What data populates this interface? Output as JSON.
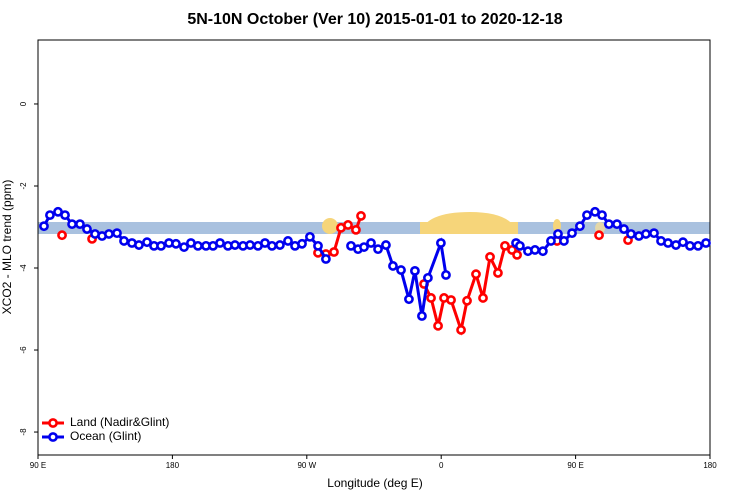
{
  "chart_data": {
    "type": "line",
    "title": "5N-10N October (Ver 10)   2015-01-01 to 2020-12-18",
    "x_label": "Longitude (deg E)",
    "y_label": "XCO2 - MLO trend (ppm)",
    "xlim": [
      90,
      540
    ],
    "ylim": [
      -8.56,
      1.56
    ],
    "xticks": [
      {
        "value": 90,
        "label": "90 E"
      },
      180,
      {
        "value": 270,
        "label": "90 W"
      },
      {
        "value": 360,
        "label": "0"
      },
      {
        "value": 450,
        "label": "90 E"
      },
      {
        "value": 540,
        "label": "180"
      }
    ],
    "yticks": [
      0,
      -2,
      -4,
      -6,
      -8
    ],
    "grid": false,
    "legend": "bottom-left",
    "series": [
      {
        "name": "Land (Nadir&Glint)",
        "color": "#ff0000",
        "x": [
          106.1,
          110,
          126.2,
          200,
          277.5,
          282.8,
          288.2,
          292.9,
          297.6,
          302.9,
          306.3,
          330,
          348.5,
          353.2,
          357.9,
          361.9,
          366.6,
          373.3,
          377.3,
          383.3,
          388.0,
          392.7,
          398.0,
          402.7,
          407.4,
          410.8,
          420,
          437.6,
          450,
          465.7,
          470,
          485.1
        ],
        "values": [
          -3.2,
          null,
          -3.29,
          null,
          -3.63,
          -3.66,
          -3.61,
          -3.02,
          -2.95,
          -3.07,
          -2.73,
          null,
          -4.39,
          -4.73,
          -5.41,
          -4.73,
          -4.78,
          -5.51,
          -4.8,
          -4.15,
          -4.73,
          -3.73,
          -4.12,
          -3.46,
          -3.56,
          -3.68,
          null,
          -3.34,
          null,
          -3.2,
          null,
          -3.32
        ]
      },
      {
        "name": "Ocean (Glint)",
        "color": "#0000ee",
        "x": [
          94.0,
          98.0,
          103.4,
          108.1,
          112.8,
          118.1,
          122.8,
          128.2,
          132.9,
          137.5,
          142.9,
          147.6,
          152.9,
          157.6,
          163.0,
          167.7,
          172.4,
          177.7,
          182.4,
          187.8,
          192.4,
          197.1,
          202.5,
          207.2,
          211.9,
          217.2,
          221.9,
          227.3,
          232.0,
          237.3,
          242.0,
          246.7,
          252.0,
          257.4,
          262.1,
          266.8,
          272.1,
          277.5,
          282.8,
          290,
          299.6,
          304.3,
          308.3,
          313.0,
          317.7,
          323.0,
          327.7,
          333.1,
          338.4,
          342.4,
          347.1,
          351.1,
          359.8,
          363.2,
          385,
          410.1,
          412.7,
          418.1,
          422.8,
          428.1,
          433.5,
          438.2,
          442.2,
          447.6,
          452.9,
          457.6,
          463.0,
          467.7,
          472.3,
          477.7,
          482.4,
          487.1,
          492.4,
          497.1,
          502.5,
          507.2,
          511.9,
          517.2,
          521.9,
          526.6,
          532.0,
          537.3
        ],
        "values": [
          -2.98,
          -2.71,
          -2.63,
          -2.71,
          -2.93,
          -2.93,
          -3.05,
          -3.17,
          -3.22,
          -3.17,
          -3.15,
          -3.34,
          -3.39,
          -3.44,
          -3.37,
          -3.46,
          -3.46,
          -3.39,
          -3.41,
          -3.49,
          -3.39,
          -3.46,
          -3.46,
          -3.46,
          -3.39,
          -3.46,
          -3.44,
          -3.46,
          -3.44,
          -3.46,
          -3.39,
          -3.46,
          -3.44,
          -3.34,
          -3.46,
          -3.41,
          -3.24,
          -3.46,
          -3.78,
          null,
          -3.46,
          -3.54,
          -3.49,
          -3.39,
          -3.54,
          -3.44,
          -3.95,
          -4.05,
          -4.76,
          -4.07,
          -5.17,
          -4.24,
          -3.39,
          -4.17,
          null,
          -3.39,
          -3.46,
          -3.59,
          -3.56,
          -3.59,
          -3.34,
          -3.17,
          -3.34,
          -3.15,
          -2.98,
          -2.71,
          -2.63,
          -2.71,
          -2.93,
          -2.93,
          -3.05,
          -3.17,
          -3.22,
          -3.17,
          -3.15,
          -3.34,
          -3.39,
          -3.44,
          -3.37,
          -3.46,
          -3.46,
          -3.39
        ]
      }
    ]
  }
}
